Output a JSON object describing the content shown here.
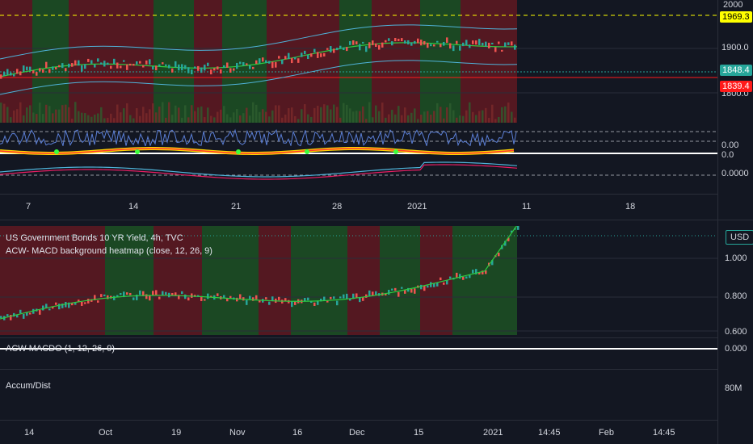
{
  "top_chart": {
    "price_axis": [
      "2000",
      "1900.0",
      "1800.0"
    ],
    "tags": [
      {
        "text": "1969.3",
        "bg": "#ffff00",
        "fg": "#000000"
      },
      {
        "text": "1848.4",
        "bg": "#26a69a",
        "fg": "#ffffff"
      },
      {
        "text": "1839.4",
        "bg": "#ff1a1a",
        "fg": "#ffffff"
      }
    ],
    "osc_axis": [
      "0.00",
      "0.0",
      "0.0000"
    ],
    "time_axis": [
      "7",
      "14",
      "21",
      "28",
      "2021",
      "11",
      "18"
    ]
  },
  "bottom_chart": {
    "symbol_title": "US Government Bonds 10 YR Yield, 4h, TVC",
    "indicator_title": "ACW- MACD background heatmap (close, 12, 26, 9)",
    "currency_badge": "USD",
    "price_axis": [
      "1.000",
      "0.800",
      "0.600"
    ],
    "macd_label": "ACW MACDO (1, 12, 26, 9)",
    "macd_value": "0.000",
    "accum_label": "Accum/Dist",
    "accum_value": "80M",
    "time_axis": [
      "14",
      "Oct",
      "19",
      "Nov",
      "16",
      "Dec",
      "15",
      "2021",
      "14:45",
      "Feb",
      "14:45"
    ]
  },
  "colors": {
    "background": "#131722",
    "bull_zone": "#1f5a24",
    "bear_zone": "#6b1a22",
    "up_candle": "#26a69a",
    "down_candle": "#ef5350"
  }
}
